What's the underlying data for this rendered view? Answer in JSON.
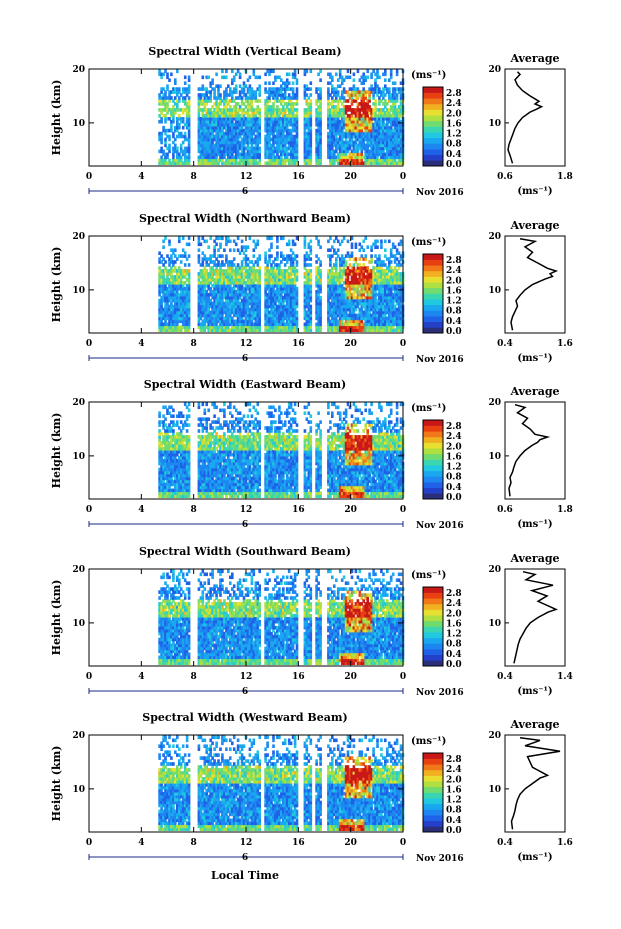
{
  "footer": {
    "xlabel": "Local Time"
  },
  "chart_data": [
    {
      "type": "heatmap",
      "title": "Spectral Width (Vertical Beam)",
      "ylabel": "Height (km)",
      "xlabel": "",
      "x_ticks": [
        "0",
        "4",
        "8",
        "12",
        "16",
        "20",
        "0"
      ],
      "y_ticks": [
        "20",
        "10"
      ],
      "xlim": [
        0,
        24
      ],
      "ylim": [
        2,
        20
      ],
      "date_marker": "6",
      "date_label": "Nov 2016",
      "colorbar": {
        "unit": "(ms⁻¹)",
        "ticks": [
          "2.8",
          "2.4",
          "2.0",
          "1.6",
          "1.2",
          "0.8",
          "0.4",
          "0.0"
        ]
      },
      "average": {
        "title": "Average",
        "unit": "(ms⁻¹)",
        "x_ticks": [
          "0.6",
          "1.8"
        ],
        "xlim": [
          0.6,
          1.8
        ],
        "y_ticks": [
          "20",
          "10"
        ],
        "heights": [
          2.5,
          4,
          5,
          6,
          7,
          8,
          9,
          10,
          11,
          12,
          12.5,
          13,
          13.5,
          14,
          15,
          16,
          17,
          18,
          19,
          19.5
        ],
        "values": [
          0.75,
          0.7,
          0.66,
          0.68,
          0.72,
          0.76,
          0.8,
          0.86,
          0.95,
          1.1,
          1.22,
          1.33,
          1.2,
          1.28,
          1.1,
          0.95,
          0.85,
          0.8,
          0.9,
          0.85
        ]
      }
    },
    {
      "type": "heatmap",
      "title": "Spectral Width (Northward Beam)",
      "ylabel": "Height (km)",
      "xlabel": "",
      "x_ticks": [
        "0",
        "4",
        "8",
        "12",
        "16",
        "20",
        "0"
      ],
      "y_ticks": [
        "20",
        "10"
      ],
      "xlim": [
        0,
        24
      ],
      "ylim": [
        2,
        20
      ],
      "date_marker": "6",
      "date_label": "Nov 2016",
      "colorbar": {
        "unit": "(ms⁻¹)",
        "ticks": [
          "2.8",
          "2.4",
          "2.0",
          "1.6",
          "1.2",
          "0.8",
          "0.4",
          "0.0"
        ]
      },
      "average": {
        "title": "Average",
        "unit": "(ms⁻¹)",
        "x_ticks": [
          "0.4",
          "1.6"
        ],
        "xlim": [
          0.4,
          1.6
        ],
        "y_ticks": [
          "20",
          "10"
        ],
        "heights": [
          2.5,
          4,
          5,
          6,
          7,
          8,
          9,
          10,
          11,
          12,
          12.5,
          13,
          13.5,
          14,
          15,
          16,
          17,
          18,
          19,
          19.5
        ],
        "values": [
          0.55,
          0.52,
          0.55,
          0.6,
          0.65,
          0.62,
          0.7,
          0.8,
          0.95,
          1.2,
          1.35,
          1.3,
          1.42,
          1.25,
          1.05,
          0.85,
          0.95,
          0.8,
          1.0,
          0.7
        ]
      }
    },
    {
      "type": "heatmap",
      "title": "Spectral Width (Eastward Beam)",
      "ylabel": "Height (km)",
      "xlabel": "",
      "x_ticks": [
        "0",
        "4",
        "8",
        "12",
        "16",
        "20",
        "0"
      ],
      "y_ticks": [
        "20",
        "10"
      ],
      "xlim": [
        0,
        24
      ],
      "ylim": [
        2,
        20
      ],
      "date_marker": "6",
      "date_label": "Nov 2016",
      "colorbar": {
        "unit": "(ms⁻¹)",
        "ticks": [
          "2.8",
          "2.4",
          "2.0",
          "1.6",
          "1.2",
          "0.8",
          "0.4",
          "0.0"
        ]
      },
      "average": {
        "title": "Average",
        "unit": "(ms⁻¹)",
        "x_ticks": [
          "0.6",
          "1.8"
        ],
        "xlim": [
          0.6,
          1.8
        ],
        "y_ticks": [
          "20",
          "10"
        ],
        "heights": [
          2.5,
          4,
          5,
          6,
          7,
          8,
          9,
          10,
          11,
          12,
          12.5,
          13,
          13.5,
          14,
          15,
          16,
          17,
          18,
          19,
          19.5
        ],
        "values": [
          0.7,
          0.68,
          0.72,
          0.7,
          0.75,
          0.78,
          0.82,
          0.9,
          1.0,
          1.15,
          1.25,
          1.3,
          1.45,
          1.2,
          1.1,
          0.95,
          1.05,
          0.85,
          1.0,
          0.8
        ]
      }
    },
    {
      "type": "heatmap",
      "title": "Spectral Width (Southward Beam)",
      "ylabel": "Height (km)",
      "xlabel": "",
      "x_ticks": [
        "0",
        "4",
        "8",
        "12",
        "16",
        "20",
        "0"
      ],
      "y_ticks": [
        "20",
        "10"
      ],
      "xlim": [
        0,
        24
      ],
      "ylim": [
        2,
        20
      ],
      "date_marker": "6",
      "date_label": "Nov 2016",
      "colorbar": {
        "unit": "(ms⁻¹)",
        "ticks": [
          "2.8",
          "2.4",
          "2.0",
          "1.6",
          "1.2",
          "0.8",
          "0.4",
          "0.0"
        ]
      },
      "average": {
        "title": "Average",
        "unit": "(ms⁻¹)",
        "x_ticks": [
          "0.4",
          "1.4"
        ],
        "xlim": [
          0.4,
          1.4
        ],
        "y_ticks": [
          "20",
          "10"
        ],
        "heights": [
          2.5,
          4,
          5,
          6,
          7,
          8,
          9,
          10,
          11,
          12,
          12.5,
          13,
          13.5,
          14,
          15,
          16,
          17,
          18,
          19,
          19.5
        ],
        "values": [
          0.55,
          0.58,
          0.6,
          0.62,
          0.65,
          0.7,
          0.75,
          0.82,
          0.95,
          1.12,
          1.25,
          1.15,
          1.05,
          0.95,
          1.1,
          0.85,
          1.2,
          0.75,
          0.9,
          0.7
        ]
      }
    },
    {
      "type": "heatmap",
      "title": "Spectral Width (Westward Beam)",
      "ylabel": "Height (km)",
      "xlabel": "",
      "x_ticks": [
        "0",
        "4",
        "8",
        "12",
        "16",
        "20",
        "0"
      ],
      "y_ticks": [
        "20",
        "10"
      ],
      "xlim": [
        0,
        24
      ],
      "ylim": [
        2,
        20
      ],
      "date_marker": "6",
      "date_label": "Nov 2016",
      "colorbar": {
        "unit": "(ms⁻¹)",
        "ticks": [
          "2.8",
          "2.4",
          "2.0",
          "1.6",
          "1.2",
          "0.8",
          "0.4",
          "0.0"
        ]
      },
      "average": {
        "title": "Average",
        "unit": "(ms⁻¹)",
        "x_ticks": [
          "0.4",
          "1.6"
        ],
        "xlim": [
          0.4,
          1.6
        ],
        "y_ticks": [
          "20",
          "10"
        ],
        "heights": [
          2.5,
          4,
          5,
          6,
          7,
          8,
          9,
          10,
          11,
          12,
          12.5,
          13,
          13.5,
          14,
          15,
          16,
          17,
          18,
          19,
          19.5
        ],
        "values": [
          0.55,
          0.53,
          0.57,
          0.6,
          0.62,
          0.65,
          0.7,
          0.8,
          0.95,
          1.1,
          1.25,
          1.15,
          1.05,
          0.95,
          0.9,
          0.85,
          1.5,
          0.8,
          1.1,
          0.7
        ]
      }
    }
  ]
}
